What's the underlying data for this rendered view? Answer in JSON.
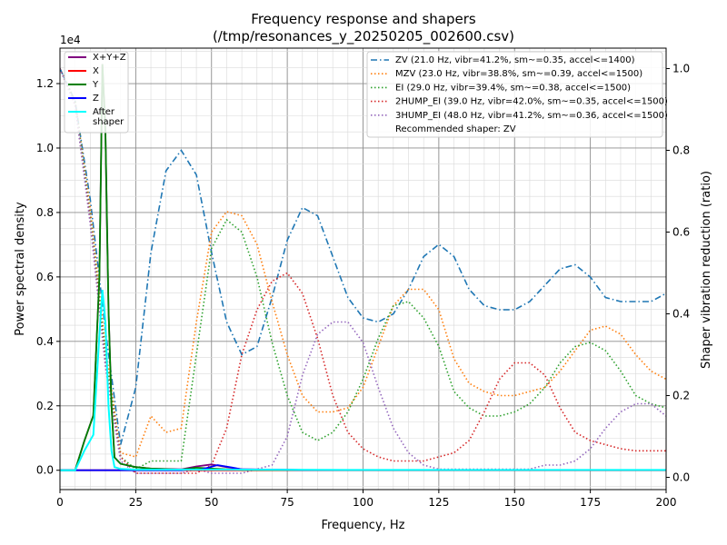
{
  "chart_data": {
    "type": "line",
    "title_line1": "Frequency response and shapers",
    "title_line2": "(/tmp/resonances_y_20250205_002600.csv)",
    "xlabel": "Frequency, Hz",
    "ylabel": "Power spectral density",
    "y2label": "Shaper vibration reduction (ratio)",
    "y_offset_text": "1e4",
    "xlim": [
      0,
      200
    ],
    "ylim": [
      -0.06,
      1.31
    ],
    "y2lim": [
      -0.03,
      1.05
    ],
    "x_ticks": [
      0,
      25,
      50,
      75,
      100,
      125,
      150,
      175,
      200
    ],
    "y_ticks": [
      0.0,
      0.2,
      0.4,
      0.6,
      0.8,
      1.0,
      1.2
    ],
    "y_tick_labels": [
      "0.0",
      "0.2",
      "0.4",
      "0.6",
      "0.8",
      "1.0",
      "1.2"
    ],
    "y2_ticks": [
      0.0,
      0.2,
      0.4,
      0.6,
      0.8,
      1.0
    ],
    "y2_tick_labels": [
      "0.0",
      "0.2",
      "0.4",
      "0.6",
      "0.8",
      "1.0"
    ],
    "grid": true,
    "legend_left": [
      {
        "label": "X+Y+Z",
        "color": "#800080",
        "style": "solid"
      },
      {
        "label": "X",
        "color": "#ff0000",
        "style": "solid"
      },
      {
        "label": "Y",
        "color": "#008000",
        "style": "solid"
      },
      {
        "label": "Z",
        "color": "#0000ff",
        "style": "solid"
      },
      {
        "label": "After shaper",
        "color": "#00ffff",
        "style": "solid"
      }
    ],
    "legend_right": [
      {
        "label": "ZV (21.0 Hz, vibr=41.2%, sm~=0.35, accel<=1400)",
        "color": "#1f77b4",
        "style": "dashdot"
      },
      {
        "label": "MZV (23.0 Hz, vibr=38.8%, sm~=0.39, accel<=1500)",
        "color": "#ff7f0e",
        "style": "dotted"
      },
      {
        "label": "EI (29.0 Hz, vibr=39.4%, sm~=0.38, accel<=1500)",
        "color": "#2ca02c",
        "style": "dotted"
      },
      {
        "label": "2HUMP_EI (39.0 Hz, vibr=42.0%, sm~=0.35, accel<=1500)",
        "color": "#d62728",
        "style": "dotted"
      },
      {
        "label": "3HUMP_EI (48.0 Hz, vibr=41.2%, sm~=0.36, accel<=1500)",
        "color": "#9467bd",
        "style": "dotted"
      },
      {
        "label": "Recommended shaper: ZV",
        "color": "",
        "style": "none"
      }
    ],
    "psd_series": [
      {
        "name": "X+Y+Z",
        "color": "#800080",
        "x": [
          0,
          5,
          8,
          11,
          13,
          14,
          15,
          16,
          17,
          18,
          20,
          25,
          30,
          40,
          45,
          50,
          55,
          60,
          80,
          100,
          150,
          200
        ],
        "y": [
          0,
          0,
          0.09,
          0.17,
          0.6,
          1.26,
          1.05,
          0.5,
          0.2,
          0.04,
          0.02,
          0.01,
          0.005,
          0.003,
          0.012,
          0.018,
          0.01,
          0.003,
          0.001,
          0.001,
          0.001,
          0.001
        ]
      },
      {
        "name": "X",
        "color": "#ff0000",
        "x": [
          0,
          20,
          40,
          60,
          80,
          100,
          150,
          200
        ],
        "y": [
          0,
          0,
          0,
          0,
          0,
          0,
          0,
          0
        ]
      },
      {
        "name": "Y",
        "color": "#008000",
        "x": [
          0,
          5,
          8,
          11,
          13,
          14,
          15,
          16,
          17,
          18,
          20,
          25,
          30,
          40,
          45,
          50,
          55,
          60,
          80,
          100,
          150,
          200
        ],
        "y": [
          0,
          0,
          0.09,
          0.17,
          0.6,
          1.26,
          1.05,
          0.5,
          0.2,
          0.04,
          0.02,
          0.01,
          0.005,
          0.002,
          0.008,
          0.005,
          0.003,
          0.001,
          0.001,
          0.001,
          0.001,
          0.001
        ]
      },
      {
        "name": "Z",
        "color": "#0000ff",
        "x": [
          0,
          40,
          43,
          46,
          48,
          52,
          56,
          60,
          80,
          200
        ],
        "y": [
          0,
          0,
          0.003,
          0.001,
          0.006,
          0.016,
          0.01,
          0.003,
          0.001,
          0.001
        ]
      },
      {
        "name": "After shaper",
        "color": "#00ffff",
        "x": [
          0,
          5,
          8,
          11,
          13,
          14,
          15,
          16,
          17,
          18,
          20,
          25,
          50,
          100,
          200
        ],
        "y": [
          0,
          0,
          0.06,
          0.11,
          0.42,
          0.56,
          0.46,
          0.2,
          0.06,
          0.01,
          0.004,
          0.002,
          0.002,
          0.001,
          0.001
        ]
      }
    ],
    "shaper_series": [
      {
        "name": "ZV",
        "color": "#1f77b4",
        "dash": "7,3,1.5,3",
        "x": [
          0,
          5,
          10,
          15,
          20,
          25,
          30,
          35,
          40,
          45,
          50,
          55,
          60,
          65,
          70,
          75,
          80,
          85,
          90,
          95,
          100,
          105,
          110,
          115,
          120,
          125,
          130,
          135,
          140,
          145,
          150,
          155,
          160,
          165,
          170,
          175,
          180,
          185,
          190,
          195,
          200
        ],
        "y": [
          1.0,
          0.92,
          0.68,
          0.36,
          0.08,
          0.22,
          0.55,
          0.75,
          0.8,
          0.74,
          0.55,
          0.38,
          0.3,
          0.32,
          0.44,
          0.58,
          0.66,
          0.64,
          0.54,
          0.44,
          0.39,
          0.38,
          0.4,
          0.46,
          0.54,
          0.57,
          0.54,
          0.46,
          0.42,
          0.41,
          0.41,
          0.43,
          0.47,
          0.51,
          0.52,
          0.49,
          0.44,
          0.43,
          0.43,
          0.43,
          0.45
        ]
      },
      {
        "name": "MZV",
        "color": "#ff7f0e",
        "dash": "1.5,2.5",
        "x": [
          0,
          5,
          10,
          15,
          20,
          25,
          30,
          35,
          40,
          45,
          50,
          55,
          60,
          65,
          70,
          75,
          80,
          85,
          90,
          95,
          100,
          105,
          110,
          115,
          120,
          125,
          130,
          135,
          140,
          145,
          150,
          155,
          160,
          165,
          170,
          175,
          180,
          185,
          190,
          195,
          200
        ],
        "y": [
          1.0,
          0.92,
          0.66,
          0.32,
          0.06,
          0.05,
          0.15,
          0.11,
          0.12,
          0.38,
          0.6,
          0.65,
          0.64,
          0.57,
          0.43,
          0.3,
          0.2,
          0.16,
          0.16,
          0.17,
          0.22,
          0.32,
          0.42,
          0.46,
          0.46,
          0.41,
          0.29,
          0.23,
          0.21,
          0.2,
          0.2,
          0.21,
          0.22,
          0.26,
          0.31,
          0.36,
          0.37,
          0.35,
          0.3,
          0.26,
          0.24
        ]
      },
      {
        "name": "EI",
        "color": "#2ca02c",
        "dash": "1.5,2.5",
        "x": [
          0,
          5,
          10,
          15,
          20,
          25,
          30,
          35,
          40,
          45,
          50,
          55,
          60,
          65,
          70,
          75,
          80,
          85,
          90,
          95,
          100,
          105,
          110,
          115,
          120,
          125,
          130,
          135,
          140,
          145,
          150,
          155,
          160,
          165,
          170,
          175,
          180,
          185,
          190,
          195,
          200
        ],
        "y": [
          1.0,
          0.92,
          0.64,
          0.3,
          0.05,
          0.02,
          0.04,
          0.04,
          0.04,
          0.3,
          0.56,
          0.63,
          0.6,
          0.49,
          0.33,
          0.2,
          0.11,
          0.09,
          0.11,
          0.16,
          0.24,
          0.34,
          0.42,
          0.43,
          0.39,
          0.32,
          0.21,
          0.17,
          0.15,
          0.15,
          0.16,
          0.18,
          0.22,
          0.28,
          0.32,
          0.33,
          0.31,
          0.26,
          0.2,
          0.18,
          0.17
        ]
      },
      {
        "name": "2HUMP_EI",
        "color": "#d62728",
        "dash": "1.5,2.5",
        "x": [
          0,
          5,
          10,
          15,
          20,
          25,
          30,
          35,
          40,
          45,
          50,
          55,
          60,
          65,
          70,
          75,
          80,
          85,
          90,
          95,
          100,
          105,
          110,
          115,
          120,
          125,
          130,
          135,
          140,
          145,
          150,
          155,
          160,
          165,
          170,
          175,
          180,
          185,
          190,
          195,
          200
        ],
        "y": [
          1.0,
          0.91,
          0.63,
          0.28,
          0.05,
          0.01,
          0.01,
          0.01,
          0.01,
          0.01,
          0.03,
          0.12,
          0.3,
          0.41,
          0.48,
          0.5,
          0.45,
          0.34,
          0.2,
          0.11,
          0.07,
          0.05,
          0.04,
          0.04,
          0.04,
          0.05,
          0.06,
          0.09,
          0.16,
          0.24,
          0.28,
          0.28,
          0.25,
          0.17,
          0.11,
          0.09,
          0.08,
          0.07,
          0.065,
          0.065,
          0.065
        ]
      },
      {
        "name": "3HUMP_EI",
        "color": "#9467bd",
        "dash": "1.5,2.5",
        "x": [
          0,
          5,
          10,
          15,
          20,
          25,
          30,
          35,
          40,
          45,
          50,
          55,
          60,
          65,
          70,
          75,
          80,
          85,
          90,
          95,
          100,
          105,
          110,
          115,
          120,
          125,
          130,
          135,
          140,
          145,
          150,
          155,
          160,
          165,
          170,
          175,
          180,
          185,
          190,
          195,
          200
        ],
        "y": [
          1.0,
          0.91,
          0.62,
          0.27,
          0.04,
          0.01,
          0.01,
          0.01,
          0.01,
          0.02,
          0.01,
          0.01,
          0.01,
          0.02,
          0.03,
          0.1,
          0.25,
          0.35,
          0.38,
          0.38,
          0.33,
          0.22,
          0.12,
          0.06,
          0.03,
          0.02,
          0.02,
          0.02,
          0.02,
          0.02,
          0.02,
          0.02,
          0.03,
          0.03,
          0.04,
          0.07,
          0.12,
          0.16,
          0.18,
          0.18,
          0.15
        ]
      }
    ]
  }
}
